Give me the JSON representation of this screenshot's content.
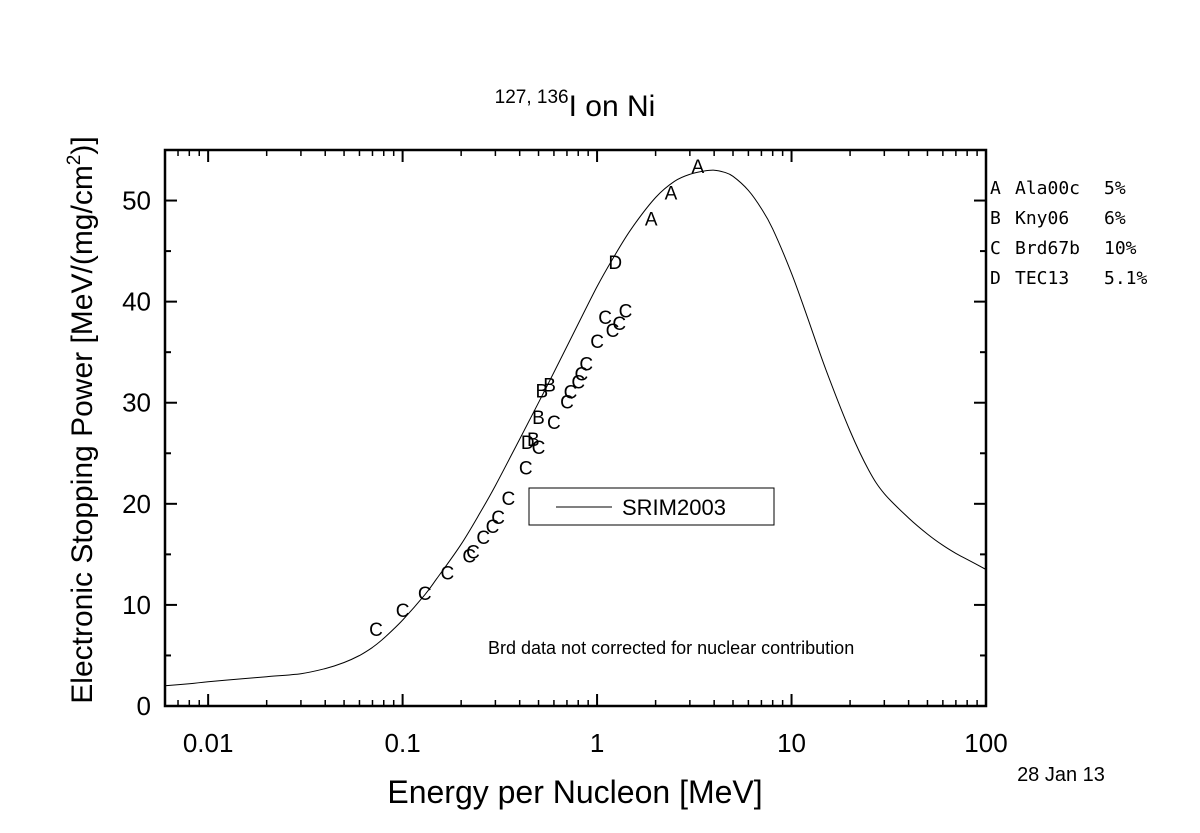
{
  "chart_data": {
    "type": "scatter",
    "title_sup": "127, 136",
    "title_main": "I on Ni",
    "xlabel": "Energy per Nucleon [MeV]",
    "ylabel_main": "Electronic Stopping Power [MeV/(mg/cm",
    "ylabel_sup": "2",
    "ylabel_end": ")]",
    "x_scale": "log",
    "xlim": [
      0.006,
      100
    ],
    "ylim": [
      0,
      55
    ],
    "x_ticks": [
      0.01,
      0.1,
      1,
      10,
      100
    ],
    "x_tick_labels": [
      "0.01",
      "0.1",
      "1",
      "10",
      "100"
    ],
    "y_ticks": [
      0,
      10,
      20,
      30,
      40,
      50
    ],
    "y_tick_labels": [
      "0",
      "10",
      "20",
      "30",
      "40",
      "50"
    ],
    "date_label": "28 Jan 13",
    "annotation": "Brd data not corrected for nuclear contribution",
    "legend": {
      "placement": "center-right",
      "entries": [
        {
          "label": "SRIM2003",
          "style": "line"
        }
      ]
    },
    "dataset_key": [
      {
        "marker": "A",
        "name": "Ala00c",
        "error": "5%"
      },
      {
        "marker": "B",
        "name": "Kny06",
        "error": "6%"
      },
      {
        "marker": "C",
        "name": "Brd67b",
        "error": "10%"
      },
      {
        "marker": "D",
        "name": "TEC13",
        "error": "5.1%"
      }
    ],
    "series": [
      {
        "name": "SRIM2003",
        "kind": "line",
        "x": [
          0.006,
          0.008,
          0.01,
          0.015,
          0.02,
          0.03,
          0.04,
          0.05,
          0.06,
          0.07,
          0.08,
          0.1,
          0.13,
          0.15,
          0.2,
          0.25,
          0.3,
          0.4,
          0.5,
          0.6,
          0.8,
          1.0,
          1.2,
          1.5,
          2.0,
          2.5,
          3.0,
          3.5,
          4.0,
          4.5,
          5.0,
          6.0,
          7.0,
          8.0,
          10,
          12,
          15,
          20,
          25,
          30,
          40,
          50,
          60,
          70,
          80,
          100
        ],
        "y": [
          2.0,
          2.2,
          2.4,
          2.7,
          2.9,
          3.2,
          3.7,
          4.3,
          5.0,
          5.8,
          6.7,
          8.5,
          11.0,
          12.6,
          16.0,
          19.1,
          21.8,
          26.4,
          30.0,
          33.0,
          37.8,
          41.5,
          44.2,
          47.2,
          50.3,
          51.9,
          52.6,
          52.9,
          53.0,
          52.8,
          52.4,
          51.0,
          49.2,
          47.2,
          42.8,
          38.6,
          33.3,
          27.2,
          23.3,
          21.0,
          18.6,
          17.0,
          15.9,
          15.1,
          14.5,
          13.5
        ]
      },
      {
        "name": "A",
        "kind": "letter",
        "x": [
          1.9,
          2.4,
          3.3
        ],
        "y": [
          48.2,
          50.8,
          53.4
        ]
      },
      {
        "name": "B",
        "kind": "letter",
        "x": [
          0.47,
          0.5,
          0.52,
          0.57
        ],
        "y": [
          26.4,
          28.6,
          31.2,
          31.8
        ]
      },
      {
        "name": "C",
        "kind": "letter",
        "x": [
          0.073,
          0.1,
          0.13,
          0.17,
          0.22,
          0.23,
          0.26,
          0.29,
          0.31,
          0.35,
          0.43,
          0.5,
          0.6,
          0.7,
          0.73,
          0.8,
          0.83,
          0.88,
          1.0,
          1.1,
          1.2,
          1.3,
          1.4
        ],
        "y": [
          7.6,
          9.5,
          11.2,
          13.2,
          14.9,
          15.3,
          16.7,
          17.8,
          18.7,
          20.6,
          23.6,
          25.6,
          28.1,
          30.1,
          31.1,
          32.1,
          32.9,
          33.9,
          36.1,
          38.5,
          37.2,
          37.9,
          39.1
        ]
      },
      {
        "name": "D",
        "kind": "letter",
        "x": [
          0.44,
          1.24
        ],
        "y": [
          26.1,
          43.9
        ]
      }
    ]
  }
}
